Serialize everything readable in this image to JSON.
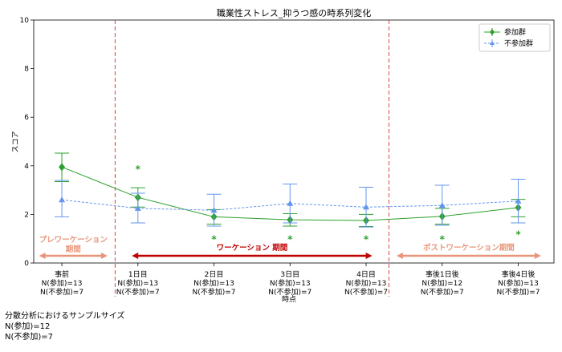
{
  "chart_data": {
    "type": "line",
    "title": "職業性ストレス_抑うつ感の時系列変化",
    "xlabel": "時点",
    "ylabel": "スコア",
    "ylim": [
      0,
      10
    ],
    "yticks": [
      "0",
      "2",
      "4",
      "6",
      "8",
      "10"
    ],
    "grid": false,
    "legend_position": "top-right",
    "categories": [
      {
        "name": "事前",
        "n1": "N(参加)=13",
        "n2": "N(不参加)=7"
      },
      {
        "name": "1日目",
        "n1": "N(参加)=13",
        "n2": "N(不参加)=7"
      },
      {
        "name": "2日目",
        "n1": "N(参加)=13",
        "n2": "N(不参加)=7"
      },
      {
        "name": "3日目",
        "n1": "N(参加)=13",
        "n2": "N(不参加)=7"
      },
      {
        "name": "4日目",
        "n1": "N(参加)=13",
        "n2": "N(不参加)=7"
      },
      {
        "name": "事後1日後",
        "n1": "N(参加)=12",
        "n2": "N(不参加)=7"
      },
      {
        "name": "事後4日後",
        "n1": "N(参加)=13",
        "n2": "N(不参加)=7"
      }
    ],
    "series": [
      {
        "name": "参加群",
        "color": "#2ca02c",
        "marker": "diamond",
        "line_style": "solid",
        "values": [
          3.95,
          2.7,
          1.9,
          1.78,
          1.75,
          1.92,
          2.28
        ],
        "err_low": [
          3.35,
          2.3,
          1.6,
          1.52,
          1.5,
          1.6,
          1.9
        ],
        "err_high": [
          4.52,
          3.1,
          2.2,
          2.03,
          2.0,
          2.25,
          2.62
        ]
      },
      {
        "name": "不参加群",
        "color": "#6495ed",
        "marker": "triangle",
        "line_style": "dashed",
        "values": [
          2.6,
          2.25,
          2.17,
          2.45,
          2.3,
          2.37,
          2.55
        ],
        "err_low": [
          1.9,
          1.65,
          1.52,
          1.65,
          1.48,
          1.55,
          1.65
        ],
        "err_high": [
          3.4,
          2.87,
          2.83,
          3.25,
          3.12,
          3.2,
          3.45
        ]
      }
    ],
    "significance": [
      {
        "index": 1,
        "label": "*",
        "y": 3.9
      },
      {
        "index": 2,
        "label": "*",
        "y": 1.0
      },
      {
        "index": 3,
        "label": "*",
        "y": 1.0
      },
      {
        "index": 4,
        "label": "*",
        "y": 1.0
      },
      {
        "index": 5,
        "label": "*",
        "y": 1.0
      },
      {
        "index": 6,
        "label": "*",
        "y": 1.2
      }
    ],
    "phase_boundaries": [
      0.7,
      4.3
    ],
    "phases": [
      {
        "label": "プレワーケーション\n期間",
        "from": -0.3,
        "to": 0.6,
        "color": "#e8967a"
      },
      {
        "label": "ワーケーション 期間",
        "from": 0.92,
        "to": 4.08,
        "color": "#c00000"
      },
      {
        "label": "ポストワーケーション期間",
        "from": 4.4,
        "to": 6.3,
        "color": "#e8967a"
      }
    ]
  },
  "footnote": {
    "line1": "分散分析におけるサンプルサイズ",
    "line2": "N(参加)=12",
    "line3": "N(不参加)=7"
  }
}
